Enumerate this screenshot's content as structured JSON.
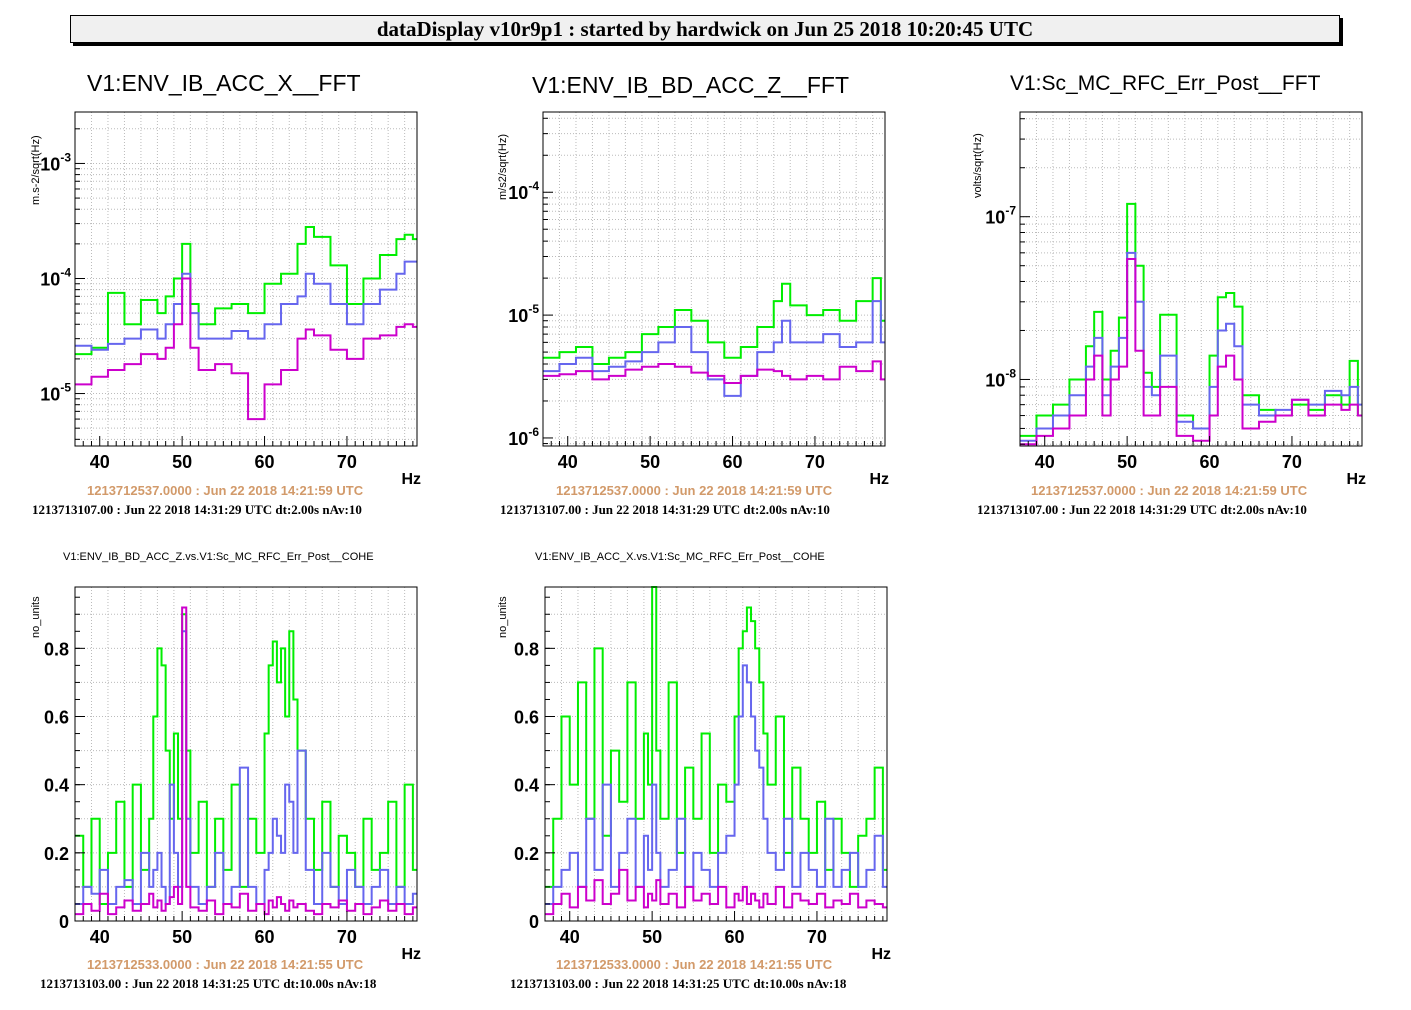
{
  "header": {
    "title": "dataDisplay v10r9p1 : started by hardwick on Jun 25 2018 10:20:45 UTC"
  },
  "colors": {
    "green": "#00ee00",
    "blue": "#6666ee",
    "magenta": "#cc00cc",
    "orange_text": "#d29a6a"
  },
  "chart_data": [
    {
      "type": "line",
      "title": "V1:ENV_IB_ACC_X__FFT",
      "ylabel": "m.s-2/sqrt(Hz)",
      "xlabel": "Hz",
      "xlim": [
        37,
        78.5
      ],
      "ylog": true,
      "ylim": [
        3.5e-06,
        0.0028
      ],
      "xticks": [
        40,
        50,
        60,
        70
      ],
      "yticks": [
        "10^-5",
        "10^-4",
        "10^-3"
      ],
      "ytick_values": [
        1e-05,
        0.0001,
        0.001
      ],
      "time_ref": "1213712537.0000 : Jun 22 2018 14:21:59 UTC",
      "time_info": "1213713107.00 : Jun 22 2018 14:31:29 UTC dt:2.00s nAv:10",
      "x": [
        37,
        39,
        41,
        43,
        45,
        47,
        48,
        49,
        50,
        51,
        52,
        54,
        56,
        58,
        60,
        62,
        64,
        65,
        66,
        68,
        70,
        72,
        74,
        76,
        77,
        78
      ],
      "series": [
        {
          "color": "green",
          "values": [
            2.2e-05,
            2.5e-05,
            7.5e-05,
            4e-05,
            6.5e-05,
            5e-05,
            7e-05,
            0.0001,
            0.0002,
            6e-05,
            4e-05,
            5.5e-05,
            6e-05,
            5e-05,
            9e-05,
            0.00011,
            0.0002,
            0.00028,
            0.00023,
            0.00013,
            6e-05,
            0.0001,
            0.00016,
            0.00022,
            0.00024,
            0.00022
          ]
        },
        {
          "color": "blue",
          "values": [
            2.6e-05,
            2.4e-05,
            2.7e-05,
            3e-05,
            3.6e-05,
            3e-05,
            4e-05,
            6e-05,
            0.00011,
            5e-05,
            3e-05,
            3e-05,
            3.5e-05,
            3e-05,
            4e-05,
            6e-05,
            7e-05,
            0.00011,
            9e-05,
            6e-05,
            4e-05,
            6e-05,
            8e-05,
            0.00011,
            0.00014,
            0.00014
          ]
        },
        {
          "color": "magenta",
          "values": [
            1.2e-05,
            1.4e-05,
            1.6e-05,
            1.8e-05,
            2.2e-05,
            2e-05,
            2.5e-05,
            4e-05,
            0.0001,
            2.5e-05,
            1.6e-05,
            1.8e-05,
            1.5e-05,
            6e-06,
            1.2e-05,
            1.6e-05,
            3e-05,
            3.6e-05,
            3.2e-05,
            2.4e-05,
            2e-05,
            3e-05,
            3.2e-05,
            3.8e-05,
            4e-05,
            3.8e-05
          ]
        }
      ]
    },
    {
      "type": "line",
      "title": "V1:ENV_IB_BD_ACC_Z__FFT",
      "ylabel": "m/s2/sqrt(Hz)",
      "xlabel": "Hz",
      "xlim": [
        37,
        78.5
      ],
      "ylog": true,
      "ylim": [
        8.6e-07,
        0.00045
      ],
      "xticks": [
        40,
        50,
        60,
        70
      ],
      "yticks": [
        "10^-6",
        "10^-5",
        "10^-4"
      ],
      "ytick_values": [
        1e-06,
        1e-05,
        0.0001
      ],
      "time_ref": "1213712537.0000 : Jun 22 2018 14:21:59 UTC",
      "time_info": "1213713107.00 : Jun 22 2018 14:31:29 UTC dt:2.00s nAv:10",
      "x": [
        37,
        39,
        41,
        43,
        45,
        47,
        49,
        51,
        53,
        55,
        57,
        59,
        61,
        63,
        65,
        66,
        67,
        69,
        71,
        73,
        75,
        77,
        78
      ],
      "series": [
        {
          "color": "green",
          "values": [
            4.5e-06,
            5e-06,
            5.5e-06,
            4e-06,
            4.5e-06,
            5e-06,
            7e-06,
            8e-06,
            1.1e-05,
            9e-06,
            6e-06,
            4.5e-06,
            5.5e-06,
            8e-06,
            1.3e-05,
            1.8e-05,
            1.2e-05,
            1e-05,
            1.1e-05,
            9e-06,
            1.3e-05,
            2e-05,
            9e-06
          ]
        },
        {
          "color": "blue",
          "values": [
            3.5e-06,
            4e-06,
            4.5e-06,
            3.5e-06,
            3.8e-06,
            4.2e-06,
            5e-06,
            6e-06,
            8e-06,
            5e-06,
            3e-06,
            2.2e-06,
            3.2e-06,
            5e-06,
            6e-06,
            9e-06,
            6e-06,
            6e-06,
            7e-06,
            5.5e-06,
            6e-06,
            1.3e-05,
            6e-06
          ]
        },
        {
          "color": "magenta",
          "values": [
            3.2e-06,
            3.3e-06,
            3.5e-06,
            3e-06,
            3.2e-06,
            3.6e-06,
            3.8e-06,
            4e-06,
            3.8e-06,
            3.4e-06,
            3.2e-06,
            2.8e-06,
            3.2e-06,
            3.6e-06,
            3.5e-06,
            3.2e-06,
            3e-06,
            3.2e-06,
            3e-06,
            3.8e-06,
            3.5e-06,
            4.2e-06,
            3e-06
          ]
        }
      ]
    },
    {
      "type": "line",
      "title": "V1:Sc_MC_RFC_Err_Post__FFT",
      "ylabel": "volts/sqrt(Hz)",
      "xlabel": "Hz",
      "xlim": [
        37,
        78.5
      ],
      "ylog": true,
      "ylim": [
        3.9e-09,
        4.4e-07
      ],
      "xticks": [
        40,
        50,
        60,
        70
      ],
      "yticks": [
        "10^-8",
        "10^-7"
      ],
      "ytick_values": [
        1e-08,
        1e-07
      ],
      "time_ref": "1213712537.0000 : Jun 22 2018 14:21:59 UTC",
      "time_info": "1213713107.00 : Jun 22 2018 14:31:29 UTC dt:2.00s nAv:10",
      "x": [
        37,
        39,
        41,
        43,
        45,
        46,
        47,
        48,
        49,
        50,
        51,
        52,
        53,
        54,
        56,
        58,
        60,
        61,
        62,
        63,
        64,
        66,
        68,
        70,
        72,
        74,
        76,
        77,
        78
      ],
      "series": [
        {
          "color": "green",
          "values": [
            4.5e-09,
            6e-09,
            7e-09,
            1e-08,
            1.6e-08,
            2.6e-08,
            1e-08,
            1.5e-08,
            2.4e-08,
            1.2e-07,
            5e-08,
            1.1e-08,
            9e-09,
            2.5e-08,
            6e-09,
            5e-09,
            1.4e-08,
            3.2e-08,
            3.4e-08,
            2.8e-08,
            8e-09,
            6.5e-09,
            6e-09,
            7e-09,
            6.5e-09,
            8e-09,
            7e-09,
            1.3e-08,
            6e-09
          ]
        },
        {
          "color": "blue",
          "values": [
            4.2e-09,
            5e-09,
            6e-09,
            8e-09,
            1.2e-08,
            1.8e-08,
            8e-09,
            1.2e-08,
            1.8e-08,
            6e-08,
            3e-08,
            9e-09,
            8e-09,
            1.4e-08,
            5.5e-09,
            5e-09,
            9e-09,
            2e-08,
            2.2e-08,
            1.6e-08,
            7e-09,
            6e-09,
            6.5e-09,
            7.5e-09,
            7e-09,
            8.5e-09,
            8e-09,
            9e-09,
            7e-09
          ]
        },
        {
          "color": "magenta",
          "values": [
            4e-09,
            4.5e-09,
            5e-09,
            6e-09,
            1e-08,
            1.4e-08,
            6e-09,
            1e-08,
            1.2e-08,
            5.5e-08,
            1.5e-08,
            6e-09,
            6e-09,
            9e-09,
            4.5e-09,
            4.2e-09,
            6e-09,
            1.2e-08,
            1.4e-08,
            1e-08,
            5e-09,
            5.5e-09,
            6e-09,
            7.5e-09,
            6e-09,
            7e-09,
            6.5e-09,
            7e-09,
            6e-09
          ]
        }
      ]
    },
    {
      "type": "line",
      "title": "V1:ENV_IB_BD_ACC_Z.vs.V1:Sc_MC_RFC_Err_Post__COHE",
      "ylabel": "no_units",
      "xlabel": "Hz",
      "xlim": [
        37,
        78.5
      ],
      "ylog": false,
      "ylim": [
        0,
        0.98
      ],
      "xticks": [
        40,
        50,
        60,
        70
      ],
      "yticks": [
        "0",
        "0.2",
        "0.4",
        "0.6",
        "0.8"
      ],
      "ytick_values": [
        0,
        0.2,
        0.4,
        0.6,
        0.8
      ],
      "time_ref": "1213712533.0000 : Jun 22 2018 14:21:55 UTC",
      "time_info": "1213713103.00 : Jun 22 2018 14:31:25 UTC dt:10.00s nAv:18",
      "x": [
        37,
        38,
        39,
        40,
        41,
        42,
        43,
        44,
        45,
        46,
        46.5,
        47,
        47.5,
        48,
        48.5,
        49,
        49.5,
        50,
        50.5,
        51,
        52,
        53,
        54,
        55,
        56,
        57,
        58,
        59,
        60,
        60.5,
        61,
        61.5,
        62,
        62.5,
        63,
        63.5,
        64,
        65,
        66,
        67,
        68,
        69,
        70,
        71,
        72,
        73,
        74,
        75,
        76,
        77,
        78
      ],
      "series": [
        {
          "color": "green",
          "values": [
            0.25,
            0.1,
            0.3,
            0.05,
            0.2,
            0.35,
            0.1,
            0.4,
            0.15,
            0.3,
            0.6,
            0.8,
            0.75,
            0.5,
            0.3,
            0.55,
            0.3,
            0.9,
            0.5,
            0.2,
            0.35,
            0.1,
            0.3,
            0.15,
            0.4,
            0.1,
            0.3,
            0.2,
            0.55,
            0.75,
            0.82,
            0.7,
            0.8,
            0.6,
            0.85,
            0.65,
            0.5,
            0.3,
            0.15,
            0.35,
            0.1,
            0.25,
            0.2,
            0.1,
            0.3,
            0.15,
            0.2,
            0.35,
            0.1,
            0.4,
            0.15
          ]
        },
        {
          "color": "blue",
          "values": [
            0.05,
            0.1,
            0.08,
            0.15,
            0.05,
            0.1,
            0.12,
            0.05,
            0.2,
            0.1,
            0.15,
            0.2,
            0.1,
            0.05,
            0.4,
            0.2,
            0.1,
            0.85,
            0.3,
            0.1,
            0.05,
            0.1,
            0.2,
            0.05,
            0.1,
            0.45,
            0.1,
            0.05,
            0.15,
            0.2,
            0.3,
            0.25,
            0.2,
            0.4,
            0.35,
            0.2,
            0.5,
            0.15,
            0.05,
            0.2,
            0.1,
            0.05,
            0.15,
            0.1,
            0.05,
            0.1,
            0.15,
            0.05,
            0.1,
            0.05,
            0.08
          ]
        },
        {
          "color": "magenta",
          "values": [
            0.02,
            0.05,
            0.03,
            0.08,
            0.02,
            0.04,
            0.06,
            0.03,
            0.05,
            0.08,
            0.04,
            0.06,
            0.03,
            0.05,
            0.07,
            0.1,
            0.05,
            0.92,
            0.1,
            0.04,
            0.03,
            0.06,
            0.02,
            0.05,
            0.04,
            0.08,
            0.03,
            0.05,
            0.02,
            0.06,
            0.04,
            0.07,
            0.05,
            0.03,
            0.06,
            0.04,
            0.05,
            0.03,
            0.02,
            0.05,
            0.04,
            0.06,
            0.03,
            0.05,
            0.02,
            0.04,
            0.06,
            0.03,
            0.05,
            0.02,
            0.04
          ]
        }
      ]
    },
    {
      "type": "line",
      "title": "V1:ENV_IB_ACC_X.vs.V1:Sc_MC_RFC_Err_Post__COHE",
      "ylabel": "no_units",
      "xlabel": "Hz",
      "xlim": [
        37,
        78.5
      ],
      "ylog": false,
      "ylim": [
        0,
        0.98
      ],
      "xticks": [
        40,
        50,
        60,
        70
      ],
      "yticks": [
        "0",
        "0.2",
        "0.4",
        "0.6",
        "0.8"
      ],
      "ytick_values": [
        0,
        0.2,
        0.4,
        0.6,
        0.8
      ],
      "time_ref": "1213712533.0000 : Jun 22 2018 14:21:55 UTC",
      "time_info": "1213713103.00 : Jun 22 2018 14:31:25 UTC dt:10.00s nAv:18",
      "x": [
        37,
        38,
        39,
        40,
        41,
        42,
        43,
        44,
        45,
        46,
        47,
        48,
        49,
        49.5,
        50,
        50.5,
        51,
        52,
        53,
        54,
        55,
        56,
        57,
        58,
        59,
        60,
        60.5,
        61,
        61.5,
        62,
        62.5,
        63,
        63.5,
        64,
        65,
        66,
        67,
        68,
        69,
        70,
        71,
        72,
        73,
        74,
        75,
        76,
        77,
        78
      ],
      "series": [
        {
          "color": "green",
          "values": [
            0.1,
            0.3,
            0.6,
            0.4,
            0.7,
            0.3,
            0.8,
            0.25,
            0.5,
            0.35,
            0.7,
            0.3,
            0.55,
            0.4,
            0.98,
            0.5,
            0.3,
            0.7,
            0.2,
            0.45,
            0.3,
            0.55,
            0.2,
            0.4,
            0.35,
            0.6,
            0.8,
            0.85,
            0.92,
            0.88,
            0.8,
            0.7,
            0.55,
            0.4,
            0.6,
            0.2,
            0.45,
            0.3,
            0.2,
            0.35,
            0.15,
            0.3,
            0.2,
            0.1,
            0.25,
            0.3,
            0.45,
            0.15
          ]
        },
        {
          "color": "blue",
          "values": [
            0.05,
            0.1,
            0.15,
            0.2,
            0.1,
            0.3,
            0.15,
            0.4,
            0.1,
            0.2,
            0.3,
            0.1,
            0.25,
            0.15,
            0.4,
            0.2,
            0.1,
            0.15,
            0.3,
            0.1,
            0.2,
            0.15,
            0.1,
            0.2,
            0.25,
            0.4,
            0.6,
            0.75,
            0.7,
            0.6,
            0.5,
            0.45,
            0.3,
            0.2,
            0.15,
            0.3,
            0.1,
            0.2,
            0.15,
            0.1,
            0.3,
            0.1,
            0.15,
            0.2,
            0.1,
            0.15,
            0.25,
            0.1
          ]
        },
        {
          "color": "magenta",
          "values": [
            0.02,
            0.05,
            0.08,
            0.04,
            0.1,
            0.06,
            0.12,
            0.05,
            0.08,
            0.15,
            0.06,
            0.1,
            0.04,
            0.08,
            0.06,
            0.12,
            0.05,
            0.08,
            0.04,
            0.1,
            0.06,
            0.08,
            0.05,
            0.1,
            0.04,
            0.08,
            0.06,
            0.1,
            0.05,
            0.08,
            0.06,
            0.04,
            0.08,
            0.05,
            0.1,
            0.04,
            0.08,
            0.06,
            0.05,
            0.08,
            0.04,
            0.06,
            0.05,
            0.08,
            0.04,
            0.06,
            0.05,
            0.04
          ]
        }
      ]
    }
  ]
}
